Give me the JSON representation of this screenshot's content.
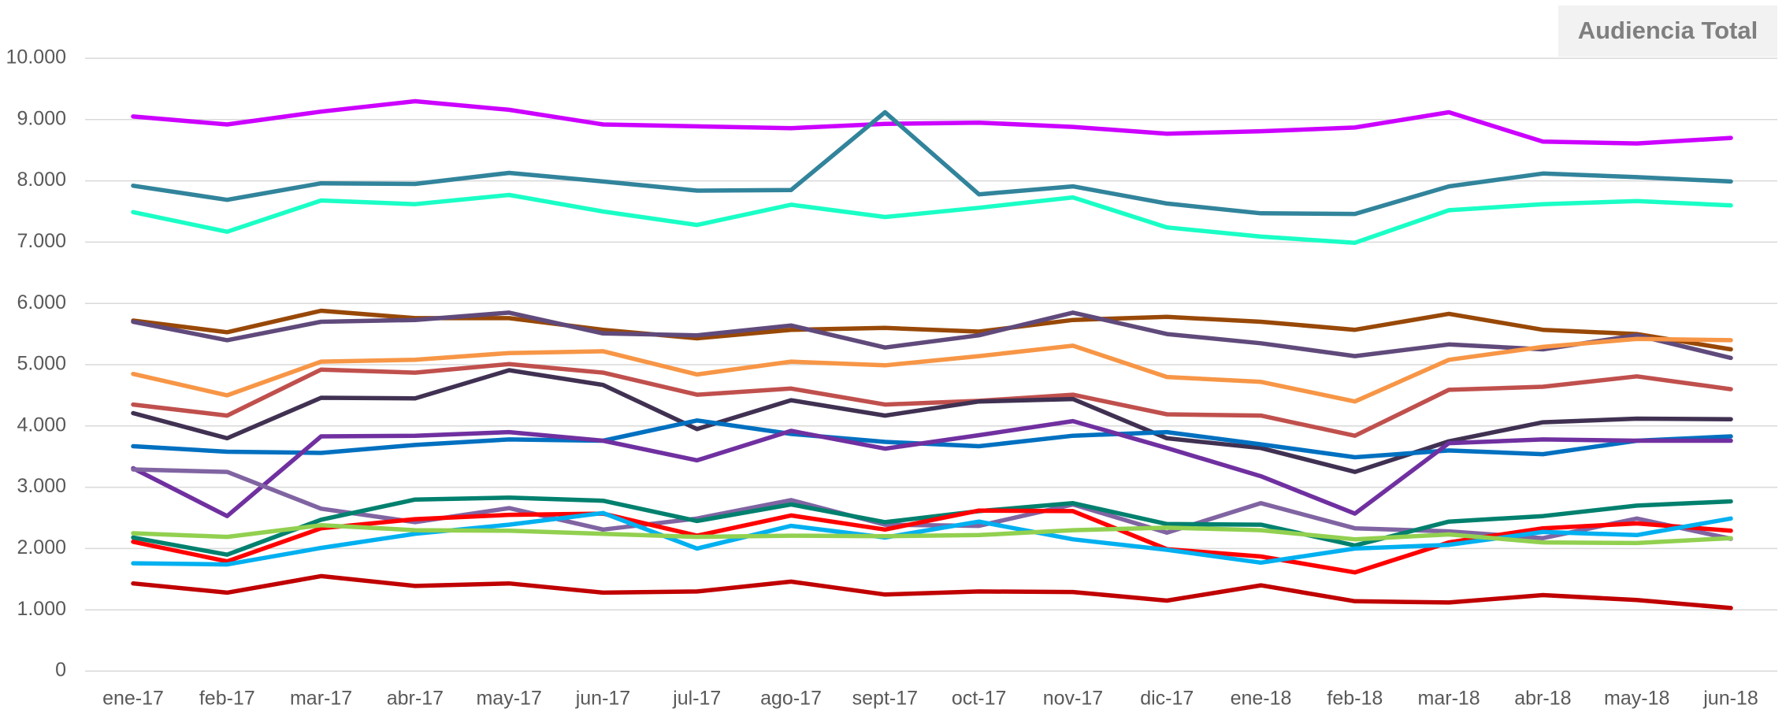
{
  "chart_data": {
    "type": "line",
    "title": "Audiencia Total",
    "categories": [
      "ene-17",
      "feb-17",
      "mar-17",
      "abr-17",
      "may-17",
      "jun-17",
      "jul-17",
      "ago-17",
      "sept-17",
      "oct-17",
      "nov-17",
      "dic-17",
      "ene-18",
      "feb-18",
      "mar-18",
      "abr-18",
      "may-18",
      "jun-18"
    ],
    "ylim": [
      0,
      10000
    ],
    "yticks": [
      0,
      {
        "value": 1000,
        "label": "1.000"
      },
      {
        "value": 2000,
        "label": "2.000"
      },
      {
        "value": 3000,
        "label": "3.000"
      },
      {
        "value": 4000,
        "label": "4.000"
      },
      {
        "value": 5000,
        "label": "5.000"
      },
      {
        "value": 6000,
        "label": "6.000"
      },
      {
        "value": 7000,
        "label": "7.000"
      },
      {
        "value": 8000,
        "label": "8.000"
      },
      {
        "value": 9000,
        "label": "9.000"
      },
      {
        "value": 10000,
        "label": "10.000"
      }
    ],
    "grid": true,
    "series": [
      {
        "color": "#cc00ff",
        "values": [
          9050,
          8920,
          9130,
          9300,
          9160,
          8920,
          8890,
          8860,
          8930,
          8950,
          8880,
          8770,
          8810,
          8870,
          9120,
          8640,
          8610,
          8700
        ]
      },
      {
        "color": "#31849b",
        "values": [
          7920,
          7690,
          7960,
          7950,
          8130,
          7990,
          7840,
          7850,
          9120,
          7780,
          7910,
          7630,
          7470,
          7460,
          7910,
          8120,
          8060,
          7990
        ]
      },
      {
        "color": "#1affc6",
        "values": [
          7490,
          7170,
          7680,
          7620,
          7770,
          7500,
          7280,
          7610,
          7410,
          7560,
          7730,
          7240,
          7090,
          6990,
          7520,
          7620,
          7670,
          7600
        ]
      },
      {
        "color": "#984807",
        "values": [
          5720,
          5530,
          5880,
          5760,
          5760,
          5570,
          5430,
          5570,
          5600,
          5540,
          5730,
          5780,
          5700,
          5570,
          5830,
          5570,
          5500,
          5250
        ]
      },
      {
        "color": "#604a7b",
        "values": [
          5700,
          5400,
          5700,
          5730,
          5850,
          5510,
          5480,
          5640,
          5280,
          5480,
          5850,
          5500,
          5350,
          5140,
          5330,
          5250,
          5480,
          5110
        ]
      },
      {
        "color": "#f79646",
        "values": [
          4850,
          4500,
          5050,
          5080,
          5190,
          5220,
          4840,
          5050,
          4990,
          5140,
          5310,
          4800,
          4720,
          4400,
          5080,
          5290,
          5420,
          5400
        ]
      },
      {
        "color": "#c0504d",
        "values": [
          4350,
          4170,
          4920,
          4870,
          5010,
          4870,
          4510,
          4610,
          4350,
          4410,
          4510,
          4190,
          4170,
          3840,
          4590,
          4640,
          4810,
          4600
        ]
      },
      {
        "color": "#403152",
        "values": [
          4210,
          3800,
          4460,
          4450,
          4910,
          4670,
          3950,
          4420,
          4170,
          4400,
          4440,
          3800,
          3640,
          3250,
          3750,
          4060,
          4120,
          4110
        ]
      },
      {
        "color": "#0070c0",
        "values": [
          3670,
          3580,
          3560,
          3690,
          3780,
          3760,
          4090,
          3870,
          3740,
          3670,
          3840,
          3900,
          3700,
          3490,
          3600,
          3540,
          3760,
          3830
        ]
      },
      {
        "color": "#7030a0",
        "values": [
          3310,
          2530,
          3830,
          3840,
          3900,
          3760,
          3440,
          3920,
          3630,
          3850,
          4080,
          3640,
          3180,
          2570,
          3720,
          3780,
          3760,
          3760
        ]
      },
      {
        "color": "#8064a2",
        "values": [
          3290,
          3250,
          2650,
          2430,
          2660,
          2310,
          2490,
          2790,
          2390,
          2370,
          2720,
          2260,
          2740,
          2330,
          2280,
          2170,
          2490,
          2160
        ]
      },
      {
        "color": "#00806e",
        "values": [
          2180,
          1900,
          2470,
          2800,
          2830,
          2780,
          2450,
          2720,
          2430,
          2610,
          2740,
          2400,
          2390,
          2050,
          2440,
          2530,
          2700,
          2770
        ]
      },
      {
        "color": "#ff0000",
        "values": [
          2110,
          1790,
          2330,
          2480,
          2550,
          2570,
          2210,
          2540,
          2310,
          2620,
          2610,
          1990,
          1870,
          1610,
          2100,
          2330,
          2410,
          2290
        ]
      },
      {
        "color": "#00b0f0",
        "values": [
          1760,
          1740,
          2010,
          2240,
          2390,
          2580,
          2000,
          2370,
          2180,
          2440,
          2150,
          1980,
          1770,
          2000,
          2060,
          2270,
          2220,
          2490
        ]
      },
      {
        "color": "#92d050",
        "values": [
          2250,
          2190,
          2380,
          2300,
          2290,
          2240,
          2190,
          2210,
          2200,
          2220,
          2300,
          2340,
          2300,
          2150,
          2230,
          2100,
          2090,
          2170
        ]
      },
      {
        "color": "#c00000",
        "values": [
          1430,
          1280,
          1550,
          1390,
          1430,
          1280,
          1300,
          1460,
          1250,
          1300,
          1290,
          1150,
          1400,
          1140,
          1120,
          1240,
          1160,
          1030
        ]
      }
    ]
  }
}
